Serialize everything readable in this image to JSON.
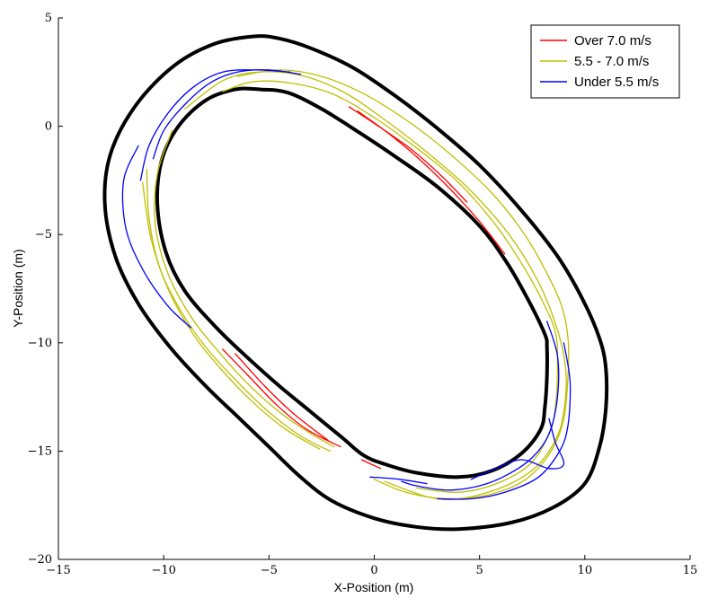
{
  "chart_data": {
    "type": "line",
    "title": "",
    "xlabel": "X-Position (m)",
    "ylabel": "Y-Position (m)",
    "xlim": [
      -15,
      15
    ],
    "ylim": [
      -20,
      5
    ],
    "xticks": [
      -15,
      -10,
      -5,
      0,
      5,
      10,
      15
    ],
    "yticks": [
      5,
      0,
      -5,
      -10,
      -15,
      -20
    ],
    "xtick_labels": [
      "−15",
      "−10",
      "−5",
      "0",
      "5",
      "10",
      "15"
    ],
    "ytick_labels": [
      "5",
      "0",
      "−5",
      "−10",
      "−15",
      "−20"
    ],
    "grid": false,
    "legend": {
      "placement": "top-right",
      "entries": [
        {
          "label": "Over 7.0 m/s",
          "color": "#ff0000"
        },
        {
          "label": "5.5 - 7.0 m/s",
          "color": "#bfbf00"
        },
        {
          "label": "Under 5.5 m/s",
          "color": "#0000ff"
        }
      ]
    },
    "boundaries": [
      {
        "name": "outer",
        "color": "#000000",
        "points": [
          [
            -5.7,
            4.15
          ],
          [
            -4.5,
            4.05
          ],
          [
            -3,
            3.6
          ],
          [
            -1,
            2.7
          ],
          [
            1,
            1.4
          ],
          [
            3,
            -0.1
          ],
          [
            5,
            -1.8
          ],
          [
            7,
            -3.9
          ],
          [
            8.7,
            -6
          ],
          [
            9.9,
            -8
          ],
          [
            10.7,
            -9.8
          ],
          [
            11.0,
            -11.2
          ],
          [
            11.0,
            -13
          ],
          [
            10.7,
            -14.8
          ],
          [
            10.0,
            -16.5
          ],
          [
            8.5,
            -17.6
          ],
          [
            6.5,
            -18.3
          ],
          [
            4,
            -18.6
          ],
          [
            2,
            -18.5
          ],
          [
            0,
            -18.1
          ],
          [
            -2,
            -17.3
          ],
          [
            -3.5,
            -16.2
          ],
          [
            -5,
            -14.8
          ],
          [
            -6.5,
            -13.4
          ],
          [
            -8,
            -12
          ],
          [
            -9.7,
            -10.2
          ],
          [
            -11.2,
            -8.2
          ],
          [
            -12.3,
            -6
          ],
          [
            -12.8,
            -3.5
          ],
          [
            -12.5,
            -1.2
          ],
          [
            -11.3,
            1
          ],
          [
            -9.5,
            2.8
          ],
          [
            -7.6,
            3.8
          ]
        ]
      },
      {
        "name": "inner",
        "color": "#000000",
        "points": [
          [
            -5.4,
            1.7
          ],
          [
            -4.1,
            1.55
          ],
          [
            -2.5,
            0.8
          ],
          [
            -0.7,
            -0.3
          ],
          [
            1,
            -1.4
          ],
          [
            3,
            -2.8
          ],
          [
            5,
            -4.6
          ],
          [
            6.3,
            -6.3
          ],
          [
            7.3,
            -8
          ],
          [
            8.1,
            -9.6
          ],
          [
            8.2,
            -10.2
          ],
          [
            8.2,
            -11.5
          ],
          [
            8.1,
            -13
          ],
          [
            7.9,
            -14
          ],
          [
            7.0,
            -15.1
          ],
          [
            5.6,
            -15.9
          ],
          [
            4,
            -16.2
          ],
          [
            2,
            -16.0
          ],
          [
            0.5,
            -15.6
          ],
          [
            -0.5,
            -15.2
          ],
          [
            -1.5,
            -14.4
          ],
          [
            -3,
            -13.2
          ],
          [
            -4.5,
            -12
          ],
          [
            -6,
            -10.7
          ],
          [
            -7.5,
            -9.3
          ],
          [
            -9,
            -7.6
          ],
          [
            -9.9,
            -5.8
          ],
          [
            -10.3,
            -3.6
          ],
          [
            -10.1,
            -1.6
          ],
          [
            -9.3,
            0
          ],
          [
            -8,
            1.2
          ],
          [
            -6.6,
            1.7
          ]
        ]
      }
    ],
    "series": [
      {
        "name": "5.5 - 7.0 m/s",
        "color": "#bfbf00",
        "segments": [
          [
            [
              -6.5,
              2.3
            ],
            [
              -4.5,
              2.6
            ],
            [
              -2.5,
              2.3
            ],
            [
              -0.5,
              1.5
            ],
            [
              1.5,
              0.3
            ],
            [
              3.5,
              -1.2
            ],
            [
              5.5,
              -3
            ],
            [
              7,
              -4.8
            ],
            [
              8.1,
              -6.6
            ],
            [
              8.9,
              -8.3
            ],
            [
              9.2,
              -9.8
            ],
            [
              9.2,
              -11.5
            ],
            [
              9,
              -13.5
            ],
            [
              8.4,
              -15
            ],
            [
              7.2,
              -16.3
            ],
            [
              5.5,
              -17
            ],
            [
              3.5,
              -17.2
            ],
            [
              1.5,
              -16.9
            ],
            [
              0,
              -16.3
            ]
          ],
          [
            [
              -7.2,
              1.6
            ],
            [
              -5.8,
              2.05
            ],
            [
              -4,
              2.0
            ],
            [
              -2,
              1.5
            ],
            [
              0,
              0.4
            ],
            [
              2,
              -1
            ],
            [
              4,
              -2.6
            ],
            [
              5.8,
              -4.6
            ],
            [
              7.1,
              -6.5
            ],
            [
              8,
              -8.1
            ],
            [
              8.6,
              -9.5
            ],
            [
              8.7,
              -11
            ],
            [
              8.6,
              -13
            ],
            [
              8.3,
              -14.2
            ],
            [
              7.4,
              -15.6
            ],
            [
              5.8,
              -16.5
            ],
            [
              4,
              -16.9
            ],
            [
              2,
              -16.7
            ]
          ],
          [
            [
              -9,
              0.8
            ],
            [
              -7.2,
              2.1
            ],
            [
              -5.5,
              2.5
            ],
            [
              -3.5,
              2.35
            ],
            [
              -1.5,
              1.6
            ],
            [
              0.5,
              0.3
            ],
            [
              2.5,
              -1.2
            ],
            [
              4.5,
              -2.9
            ],
            [
              6.4,
              -5
            ],
            [
              7.8,
              -7.2
            ],
            [
              8.7,
              -9.4
            ],
            [
              9.1,
              -11.3
            ],
            [
              9,
              -13.2
            ],
            [
              8.6,
              -14.5
            ],
            [
              7.6,
              -15.8
            ],
            [
              6,
              -16.7
            ],
            [
              4,
              -17.2
            ],
            [
              2.5,
              -17.1
            ],
            [
              0.5,
              -16.4
            ]
          ],
          [
            [
              -10.8,
              -2
            ],
            [
              -10.7,
              -4.2
            ],
            [
              -10.2,
              -6.5
            ],
            [
              -9.2,
              -8.5
            ],
            [
              -8,
              -10.2
            ],
            [
              -6.5,
              -11.8
            ],
            [
              -5,
              -13.2
            ],
            [
              -3.5,
              -14.3
            ],
            [
              -2.1,
              -15.0
            ]
          ],
          [
            [
              -11,
              -2.6
            ],
            [
              -10.6,
              -5.2
            ],
            [
              -9.8,
              -7.5
            ],
            [
              -8.6,
              -9.6
            ],
            [
              -7.2,
              -11.3
            ],
            [
              -5.7,
              -12.8
            ],
            [
              -4.2,
              -14
            ],
            [
              -2.6,
              -14.9
            ]
          ],
          [
            [
              -9.6,
              -0.2
            ],
            [
              -10.3,
              -2.2
            ],
            [
              -10.4,
              -4.5
            ],
            [
              -9.8,
              -6.8
            ],
            [
              -8.7,
              -8.8
            ],
            [
              -7.4,
              -10.4
            ],
            [
              -6,
              -11.9
            ],
            [
              -4.5,
              -13.2
            ],
            [
              -3,
              -14.2
            ],
            [
              -1.9,
              -14.8
            ]
          ]
        ]
      },
      {
        "name": "Over 7.0 m/s",
        "color": "#ff0000",
        "segments": [
          [
            [
              -0.8,
              0.7
            ],
            [
              0.5,
              -0.2
            ],
            [
              2,
              -1.4
            ],
            [
              3.6,
              -2.9
            ],
            [
              5,
              -4.4
            ],
            [
              6.2,
              -5.9
            ]
          ],
          [
            [
              -1.2,
              0.9
            ],
            [
              0.2,
              0
            ],
            [
              1.8,
              -1.1
            ],
            [
              3.2,
              -2.3
            ],
            [
              4.4,
              -3.5
            ]
          ],
          [
            [
              -7.2,
              -10.3
            ],
            [
              -6,
              -11.5
            ],
            [
              -4.6,
              -12.9
            ],
            [
              -3.2,
              -14
            ],
            [
              -1.6,
              -14.8
            ]
          ],
          [
            [
              -6.6,
              -10.5
            ],
            [
              -5.2,
              -12
            ],
            [
              -3.8,
              -13.3
            ],
            [
              -2.2,
              -14.5
            ]
          ],
          [
            [
              -0.6,
              -15.4
            ],
            [
              0.3,
              -15.8
            ]
          ]
        ]
      },
      {
        "name": "Under 5.5 m/s",
        "color": "#0000ff",
        "segments": [
          [
            [
              -10.5,
              -1.5
            ],
            [
              -10,
              -0.2
            ],
            [
              -9,
              1
            ],
            [
              -7.8,
              2
            ],
            [
              -6.5,
              2.5
            ],
            [
              -5,
              2.6
            ],
            [
              -3.5,
              2.4
            ]
          ],
          [
            [
              -11.1,
              -2.5
            ],
            [
              -10.7,
              -0.9
            ],
            [
              -9.8,
              0.6
            ],
            [
              -8.6,
              1.8
            ],
            [
              -7.2,
              2.5
            ],
            [
              -5.6,
              2.6
            ],
            [
              -4,
              2.5
            ]
          ],
          [
            [
              -11.2,
              -0.9
            ],
            [
              -11.9,
              -2.5
            ],
            [
              -11.8,
              -4.7
            ],
            [
              -11,
              -6.6
            ],
            [
              -9.8,
              -8.3
            ],
            [
              -8.7,
              -9.3
            ]
          ],
          [
            [
              8.2,
              -9.0
            ],
            [
              8.7,
              -10.6
            ],
            [
              8.7,
              -12.5
            ],
            [
              8.3,
              -14.2
            ],
            [
              7.5,
              -15.3
            ],
            [
              6.3,
              -16.1
            ],
            [
              5,
              -16.6
            ],
            [
              3.5,
              -16.8
            ],
            [
              2,
              -16.6
            ],
            [
              1.3,
              -16.4
            ]
          ],
          [
            [
              9.0,
              -10
            ],
            [
              9.3,
              -11.8
            ],
            [
              9.2,
              -13.8
            ],
            [
              8.8,
              -15
            ],
            [
              7.8,
              -16.2
            ],
            [
              6.2,
              -16.9
            ],
            [
              4.6,
              -17.2
            ],
            [
              3,
              -17.2
            ]
          ],
          [
            [
              8.3,
              -13.5
            ],
            [
              8.6,
              -14.6
            ],
            [
              9.0,
              -15.6
            ],
            [
              8.3,
              -15.8
            ],
            [
              7,
              -15.4
            ],
            [
              5.8,
              -15.8
            ],
            [
              4.6,
              -16.3
            ]
          ],
          [
            [
              -0.2,
              -16.2
            ],
            [
              1.2,
              -16.3
            ],
            [
              2.5,
              -16.5
            ]
          ]
        ]
      }
    ]
  }
}
